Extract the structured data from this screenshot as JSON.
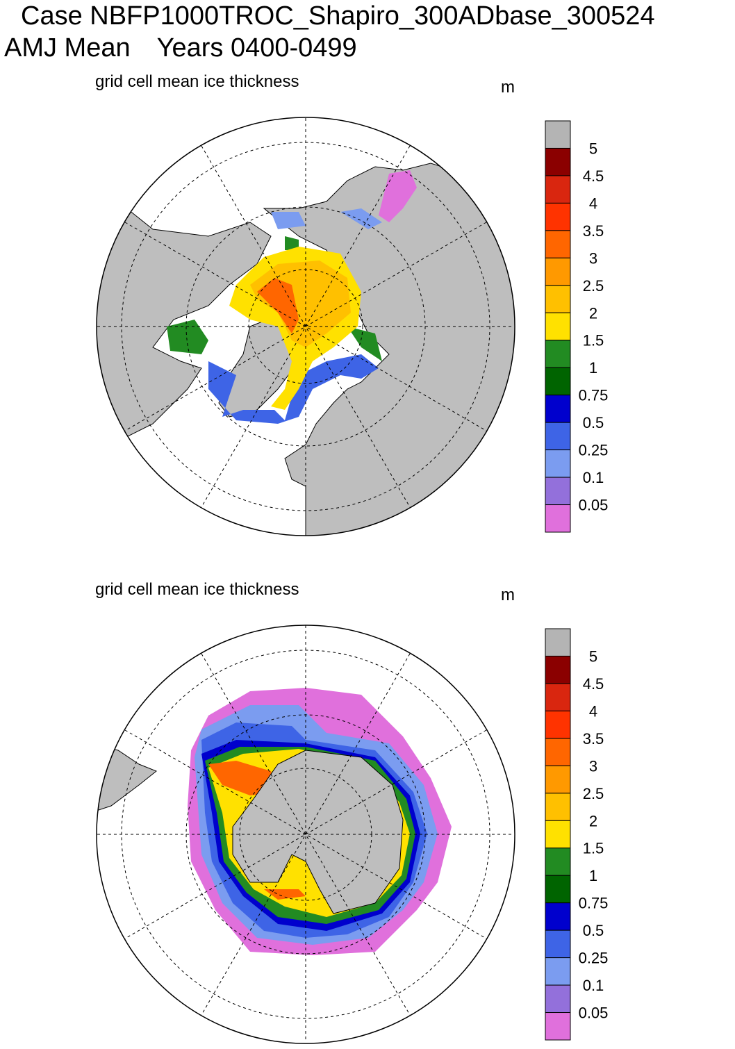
{
  "title": {
    "case": "Case NBFP1000TROC_Shapiro_300ADbase_300524",
    "season": "AMJ Mean",
    "years": "Years 0400-0499"
  },
  "panels": [
    {
      "name": "arctic",
      "subtitle": "grid cell mean ice thickness",
      "units": "m",
      "hemisphere": "north"
    },
    {
      "name": "antarctic",
      "subtitle": "grid cell mean ice thickness",
      "units": "m",
      "hemisphere": "south"
    }
  ],
  "colorbar": {
    "labels": [
      "5",
      "4.5",
      "4",
      "3.5",
      "3",
      "2.5",
      "2",
      "1.5",
      "1",
      "0.75",
      "0.5",
      "0.25",
      "0.1",
      "0.05"
    ],
    "colors": [
      "#b4b4b4",
      "#8b0000",
      "#d9260f",
      "#ff3300",
      "#ff6600",
      "#ff9900",
      "#ffc000",
      "#ffe100",
      "#228b22",
      "#006400",
      "#0000cd",
      "#3e64e6",
      "#7b9cf0",
      "#9370db",
      "#e070dc"
    ]
  },
  "colors": {
    "land": "#bebebe",
    "ocean": "#ffffff",
    "grid": "#000000"
  }
}
